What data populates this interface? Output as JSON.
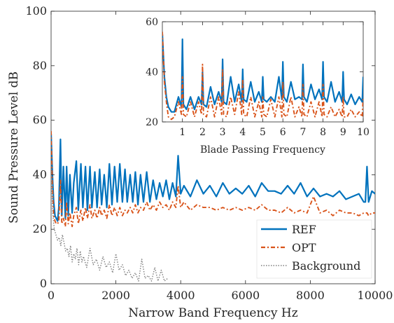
{
  "chart_data": [
    {
      "id": "main",
      "type": "line",
      "xlabel": "Narrow Band Frequency Hz",
      "ylabel": "Sound Pressure Level dB",
      "xlim": [
        0,
        10000
      ],
      "ylim": [
        0,
        100
      ],
      "xticks": [
        0,
        2000,
        4000,
        6000,
        8000,
        10000
      ],
      "yticks": [
        0,
        20,
        40,
        60,
        80,
        100
      ],
      "grid": false,
      "legend": "bottom-right",
      "series": [
        {
          "name": "REF",
          "color": "#0072BD",
          "style": "solid",
          "x": [
            0,
            40,
            80,
            120,
            160,
            200,
            240,
            290,
            330,
            380,
            440,
            480,
            530,
            580,
            650,
            700,
            780,
            840,
            920,
            980,
            1060,
            1120,
            1200,
            1260,
            1350,
            1420,
            1500,
            1560,
            1640,
            1720,
            1800,
            1880,
            1960,
            2040,
            2120,
            2200,
            2280,
            2350,
            2440,
            2520,
            2600,
            2680,
            2760,
            2850,
            2950,
            3050,
            3150,
            3250,
            3350,
            3450,
            3550,
            3650,
            3750,
            3850,
            3920,
            4000,
            4100,
            4300,
            4500,
            4700,
            4900,
            5100,
            5300,
            5500,
            5700,
            5900,
            6100,
            6300,
            6500,
            6700,
            6900,
            7100,
            7300,
            7500,
            7700,
            7900,
            8100,
            8300,
            8500,
            8700,
            8900,
            9100,
            9300,
            9500,
            9650,
            9700,
            9750,
            9800,
            9900,
            10000
          ],
          "y": [
            55,
            40,
            30,
            25,
            24,
            23,
            28,
            53,
            25,
            43,
            24,
            43,
            25,
            40,
            26,
            37,
            45,
            27,
            44,
            28,
            43,
            27,
            43,
            28,
            41,
            28,
            42,
            29,
            40,
            28,
            44,
            29,
            43,
            30,
            44,
            30,
            42,
            30,
            40,
            30,
            41,
            29,
            40,
            30,
            41,
            30,
            38,
            31,
            37,
            32,
            38,
            31,
            37,
            32,
            47,
            33,
            36,
            32,
            38,
            33,
            36,
            32,
            37,
            33,
            35,
            33,
            36,
            32,
            37,
            34,
            34,
            33,
            36,
            33,
            37,
            32,
            35,
            32,
            33,
            32,
            34,
            31,
            32,
            33,
            30,
            30,
            43,
            30,
            34,
            33
          ]
        },
        {
          "name": "OPT",
          "color": "#D95319",
          "style": "dashdot",
          "x": [
            0,
            40,
            80,
            120,
            160,
            200,
            240,
            290,
            330,
            380,
            440,
            480,
            530,
            580,
            650,
            700,
            780,
            840,
            920,
            980,
            1060,
            1120,
            1200,
            1260,
            1350,
            1420,
            1500,
            1560,
            1640,
            1720,
            1800,
            1880,
            1960,
            2040,
            2120,
            2200,
            2280,
            2350,
            2440,
            2520,
            2600,
            2680,
            2760,
            2850,
            2950,
            3050,
            3150,
            3250,
            3350,
            3450,
            3550,
            3650,
            3750,
            3850,
            3920,
            4000,
            4100,
            4300,
            4500,
            4700,
            4900,
            5100,
            5300,
            5500,
            5700,
            5900,
            6100,
            6300,
            6500,
            6700,
            6900,
            7100,
            7300,
            7500,
            7700,
            7900,
            8100,
            8300,
            8500,
            8700,
            8900,
            9100,
            9300,
            9500,
            9650,
            9700,
            9750,
            9800,
            9900,
            10000
          ],
          "y": [
            56,
            36,
            25,
            23,
            22,
            22,
            23,
            38,
            22,
            24,
            21,
            30,
            22,
            26,
            21,
            25,
            28,
            22,
            27,
            23,
            28,
            24,
            29,
            24,
            27,
            24,
            28,
            25,
            27,
            24,
            29,
            25,
            28,
            25,
            28,
            25,
            27,
            26,
            28,
            26,
            29,
            26,
            28,
            27,
            30,
            27,
            29,
            27,
            30,
            28,
            29,
            27,
            30,
            28,
            36,
            28,
            30,
            27,
            29,
            28,
            28,
            27,
            28,
            27,
            28,
            27,
            28,
            27,
            29,
            27,
            27,
            26,
            28,
            26,
            27,
            26,
            32,
            26,
            27,
            25,
            27,
            26,
            26,
            25,
            26,
            26,
            26,
            25,
            26,
            26
          ]
        },
        {
          "name": "Background",
          "color": "#7F7F7F",
          "style": "dotted",
          "x": [
            0,
            50,
            100,
            150,
            200,
            250,
            300,
            350,
            400,
            450,
            500,
            550,
            600,
            650,
            700,
            750,
            800,
            850,
            900,
            950,
            1000,
            1100,
            1200,
            1300,
            1400,
            1500,
            1600,
            1700,
            1800,
            1900,
            2000,
            2100,
            2200,
            2300,
            2400,
            2500,
            2600,
            2700,
            2800,
            2900,
            3000,
            3100,
            3200,
            3300,
            3400,
            3500,
            3600
          ],
          "y": [
            44,
            26,
            20,
            18,
            16,
            17,
            14,
            18,
            15,
            12,
            13,
            10,
            14,
            8,
            11,
            9,
            13,
            7,
            12,
            8,
            10,
            6,
            13,
            7,
            9,
            5,
            10,
            6,
            8,
            4,
            11,
            5,
            7,
            3,
            5,
            2,
            4,
            1,
            9,
            2,
            3,
            1,
            6,
            1,
            5,
            1,
            2
          ]
        }
      ]
    },
    {
      "id": "inset",
      "type": "line",
      "xlabel": "Blade Passing Frequency",
      "ylabel": "",
      "xlim": [
        0,
        10
      ],
      "ylim": [
        20,
        60
      ],
      "xticks": [
        1,
        2,
        3,
        4,
        5,
        6,
        7,
        8,
        9,
        10
      ],
      "yticks": [
        20,
        40,
        60
      ],
      "grid": false,
      "series": [
        {
          "name": "REF",
          "color": "#0072BD",
          "style": "solid",
          "x": [
            0,
            0.1,
            0.2,
            0.3,
            0.45,
            0.6,
            0.8,
            0.95,
            1.0,
            1.05,
            1.2,
            1.4,
            1.6,
            1.8,
            1.95,
            2.0,
            2.05,
            2.2,
            2.4,
            2.6,
            2.8,
            2.95,
            3.0,
            3.05,
            3.2,
            3.4,
            3.6,
            3.8,
            3.95,
            4.0,
            4.05,
            4.2,
            4.4,
            4.6,
            4.8,
            4.95,
            5.0,
            5.05,
            5.2,
            5.4,
            5.6,
            5.8,
            5.95,
            6.0,
            6.05,
            6.2,
            6.4,
            6.6,
            6.8,
            6.95,
            7.0,
            7.05,
            7.2,
            7.4,
            7.6,
            7.8,
            7.95,
            8.0,
            8.05,
            8.2,
            8.4,
            8.6,
            8.8,
            8.95,
            9.0,
            9.05,
            9.2,
            9.4,
            9.6,
            9.8,
            9.95,
            10.0
          ],
          "y": [
            55,
            38,
            30,
            26,
            24,
            24,
            30,
            26,
            53,
            27,
            25,
            30,
            25,
            30,
            27,
            40,
            27,
            26,
            34,
            27,
            32,
            28,
            45,
            28,
            27,
            38,
            28,
            35,
            28,
            41,
            29,
            28,
            36,
            28,
            32,
            28,
            38,
            29,
            28,
            30,
            28,
            38,
            29,
            44,
            30,
            28,
            36,
            29,
            30,
            29,
            43,
            30,
            28,
            35,
            29,
            33,
            29,
            44,
            30,
            28,
            36,
            28,
            32,
            28,
            40,
            29,
            27,
            31,
            27,
            30,
            28,
            38
          ]
        },
        {
          "name": "OPT",
          "color": "#D95319",
          "style": "dashdot",
          "x": [
            0,
            0.1,
            0.2,
            0.3,
            0.45,
            0.6,
            0.8,
            0.95,
            1.0,
            1.05,
            1.2,
            1.4,
            1.6,
            1.8,
            1.95,
            2.0,
            2.05,
            2.2,
            2.4,
            2.6,
            2.8,
            2.95,
            3.0,
            3.05,
            3.2,
            3.4,
            3.6,
            3.8,
            3.95,
            4.0,
            4.05,
            4.2,
            4.4,
            4.6,
            4.8,
            4.95,
            5.0,
            5.05,
            5.2,
            5.4,
            5.6,
            5.8,
            5.95,
            6.0,
            6.05,
            6.2,
            6.4,
            6.6,
            6.8,
            6.95,
            7.0,
            7.05,
            7.2,
            7.4,
            7.6,
            7.8,
            7.95,
            8.0,
            8.05,
            8.2,
            8.4,
            8.6,
            8.8,
            8.95,
            9.0,
            9.05,
            9.2,
            9.4,
            9.6,
            9.8,
            9.95,
            10.0
          ],
          "y": [
            56,
            36,
            28,
            22,
            21,
            22,
            28,
            23,
            38,
            23,
            22,
            28,
            22,
            28,
            23,
            43,
            23,
            22,
            30,
            22,
            30,
            23,
            41,
            23,
            22,
            30,
            23,
            32,
            23,
            37,
            23,
            22,
            30,
            22,
            28,
            22,
            30,
            23,
            22,
            29,
            22,
            30,
            22,
            36,
            23,
            22,
            30,
            22,
            26,
            22,
            35,
            23,
            22,
            28,
            22,
            28,
            22,
            35,
            23,
            22,
            26,
            22,
            25,
            22,
            30,
            22,
            22,
            25,
            22,
            24,
            22,
            30
          ]
        }
      ]
    }
  ]
}
